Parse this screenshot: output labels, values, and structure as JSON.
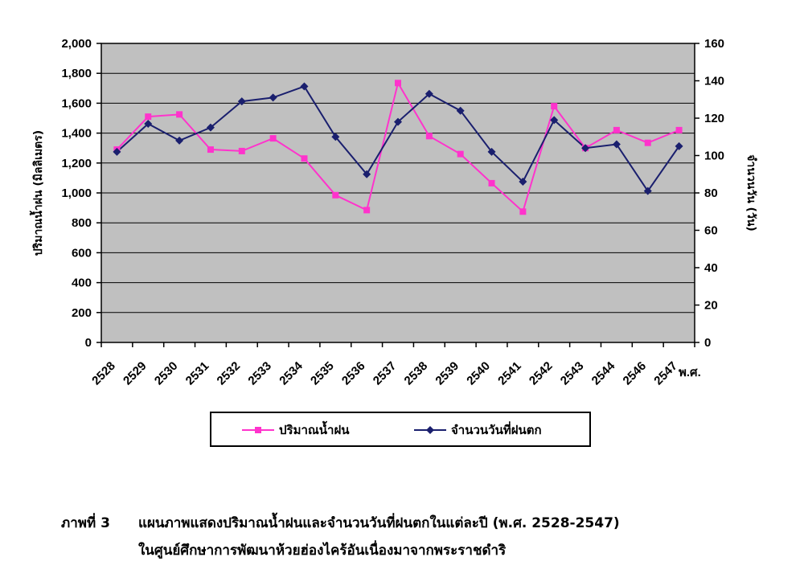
{
  "chart_data": {
    "type": "line",
    "categories": [
      "2528",
      "2529",
      "2530",
      "2531",
      "2532",
      "2533",
      "2534",
      "2535",
      "2536",
      "2537",
      "2538",
      "2539",
      "2540",
      "2541",
      "2542",
      "2543",
      "2544",
      "2546",
      "2547"
    ],
    "x_unit_label": "พ.ศ.",
    "ylabel_left": "ปริมาณน้ำฝน (มิลลิเมตร)",
    "ylabel_right": "จำนวนวัน (วัน)",
    "ylim_left": [
      0,
      2000
    ],
    "ylim_right": [
      0,
      160
    ],
    "yticks_left": [
      "0",
      "200",
      "400",
      "600",
      "800",
      "1,000",
      "1,200",
      "1,400",
      "1,600",
      "1,800",
      "2,000"
    ],
    "yticks_right": [
      "0",
      "20",
      "40",
      "60",
      "80",
      "100",
      "120",
      "140",
      "160"
    ],
    "grid": true,
    "legend_position": "bottom",
    "series": [
      {
        "name": "ปริมาณน้ำฝน",
        "axis": "left",
        "color": "#ff33cc",
        "marker": "square",
        "values": [
          1290,
          1510,
          1525,
          1290,
          1280,
          1365,
          1230,
          985,
          885,
          1735,
          1380,
          1260,
          1065,
          875,
          1580,
          1300,
          1420,
          1335,
          1420
        ]
      },
      {
        "name": "จำนวนวันที่ฝนตก",
        "axis": "right",
        "color": "#1a1f6e",
        "marker": "diamond",
        "values": [
          102,
          117,
          108,
          115,
          129,
          131,
          137,
          110,
          90,
          118,
          133,
          124,
          102,
          86,
          119,
          104,
          106,
          81,
          105
        ]
      }
    ]
  },
  "caption": {
    "label": "ภาพที่ 3",
    "line1": "แผนภาพแสดงปริมาณน้ำฝนและจำนวนวันที่ฝนตกในแต่ละปี (พ.ศ. 2528-2547)",
    "line2": "ในศูนย์ศึกษาการพัฒนาห้วยฮ่องไคร้อันเนื่องมาจากพระราชดำริ"
  }
}
